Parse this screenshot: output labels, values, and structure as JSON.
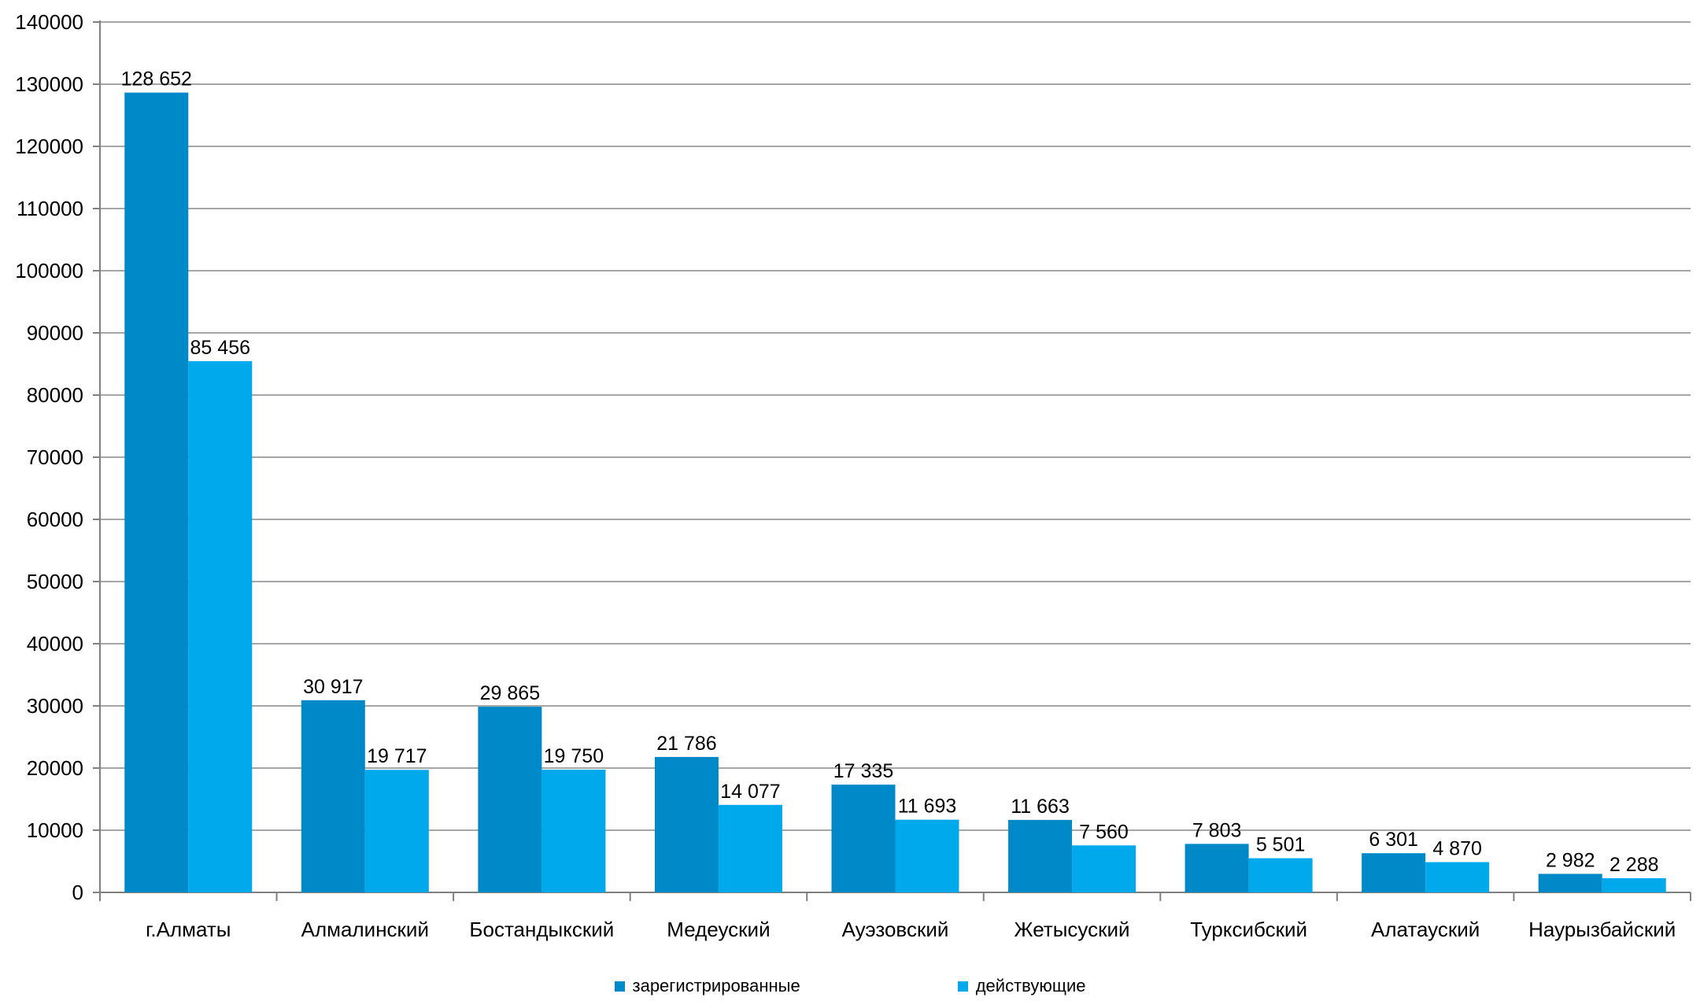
{
  "chart_data": {
    "type": "bar",
    "title": "",
    "xlabel": "",
    "ylabel": "",
    "ylim": [
      0,
      140000
    ],
    "yticks": [
      "0",
      "10000",
      "20000",
      "30000",
      "40000",
      "50000",
      "60000",
      "70000",
      "80000",
      "90000",
      "100000",
      "110000",
      "120000",
      "130000",
      "140000"
    ],
    "grid": true,
    "legend_position": "bottom",
    "categories": [
      "г.Алматы",
      "Алмалинский",
      "Бостандыкский",
      "Медеуский",
      "Ауэзовский",
      "Жетысуский",
      "Турксибский",
      "Алатауский",
      "Наурызбайский"
    ],
    "series": [
      {
        "name": "зарегистрированные",
        "color": "#0089C8",
        "values": [
          128652,
          30917,
          29865,
          21786,
          17335,
          11663,
          7803,
          6301,
          2982
        ],
        "labels": [
          "128 652",
          "30 917",
          "29 865",
          "21 786",
          "17 335",
          "11 663",
          "7 803",
          "6 301",
          "2 982"
        ]
      },
      {
        "name": "действующие",
        "color": "#00A8EC",
        "values": [
          85456,
          19717,
          19750,
          14077,
          11693,
          7560,
          5501,
          4870,
          2288
        ],
        "labels": [
          "85 456",
          "19 717",
          "19 750",
          "14 077",
          "11 693",
          "7 560",
          "5 501",
          "4 870",
          "2 288"
        ]
      }
    ]
  }
}
